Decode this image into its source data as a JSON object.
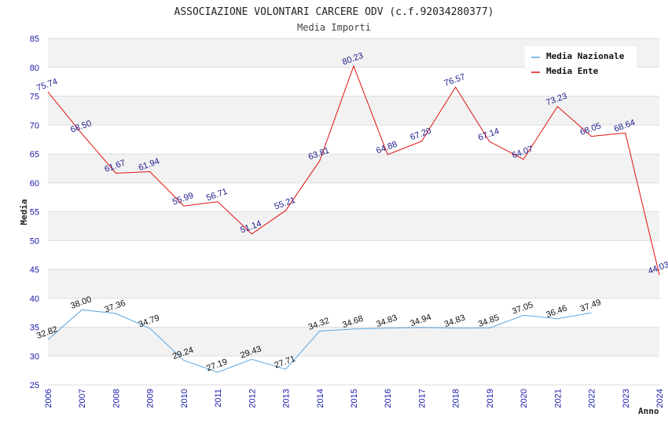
{
  "chart_data": {
    "type": "line",
    "title": "ASSOCIAZIONE VOLONTARI CARCERE ODV (c.f.92034280377)",
    "subtitle": "Media Importi",
    "xlabel": "Anno",
    "ylabel": "Media",
    "ylim": [
      25,
      85
    ],
    "yticks": [
      25,
      30,
      35,
      40,
      45,
      50,
      55,
      60,
      65,
      70,
      75,
      80,
      85
    ],
    "categories": [
      "2006",
      "2007",
      "2008",
      "2009",
      "2010",
      "2011",
      "2012",
      "2013",
      "2014",
      "2015",
      "2016",
      "2017",
      "2018",
      "2019",
      "2020",
      "2021",
      "2022",
      "2023",
      "2024"
    ],
    "series": [
      {
        "name": "Media Nazionale",
        "color": "#5ea7e0",
        "label_color": "#111111",
        "values": [
          32.82,
          38.0,
          37.36,
          34.79,
          29.24,
          27.19,
          29.43,
          27.71,
          34.32,
          34.68,
          34.83,
          34.94,
          34.83,
          34.85,
          37.05,
          36.46,
          37.49,
          null,
          null
        ],
        "labels": [
          "32.82",
          "38.00",
          "37.36",
          "34.79",
          "29.24",
          "27.19",
          "29.43",
          "27.71",
          "34.32",
          "34.68",
          "34.83",
          "34.94",
          "34.83",
          "34.85",
          "37.05",
          "36.46",
          "37.49",
          "",
          ""
        ]
      },
      {
        "name": "Media Ente",
        "color": "#e01010",
        "label_color": "#1a1a8c",
        "values": [
          75.74,
          68.5,
          61.67,
          61.94,
          55.99,
          56.71,
          51.14,
          55.21,
          63.81,
          80.23,
          64.88,
          67.2,
          76.57,
          67.14,
          64.07,
          73.23,
          68.05,
          68.64,
          44.03
        ],
        "labels": [
          "75.74",
          "68.50",
          "61.67",
          "61.94",
          "55.99",
          "56.71",
          "51.14",
          "55.21",
          "63.81",
          "80.23",
          "64.88",
          "67.20",
          "76.57",
          "67.14",
          "64.07",
          "73.23",
          "68.05",
          "68.64",
          "44.03"
        ]
      }
    ],
    "legend_position": "top-right",
    "grid": true
  }
}
